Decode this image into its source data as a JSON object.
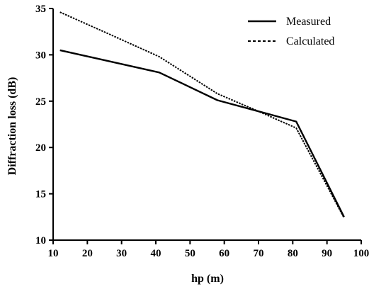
{
  "chart_data": {
    "type": "line",
    "title": "",
    "xlabel": "hp (m)",
    "ylabel": "Diffraction loss (dB)",
    "xlim": [
      10,
      100
    ],
    "ylim": [
      10,
      35
    ],
    "xticks": [
      10,
      20,
      30,
      40,
      50,
      60,
      70,
      80,
      90,
      100
    ],
    "yticks": [
      10,
      15,
      20,
      25,
      30,
      35
    ],
    "grid": false,
    "legend_position": "top-right",
    "series": [
      {
        "name": "Measured",
        "style": "solid",
        "color": "#000000",
        "points": [
          [
            12,
            30.5
          ],
          [
            41,
            28.1
          ],
          [
            58,
            25.1
          ],
          [
            70,
            23.9
          ],
          [
            81,
            22.8
          ],
          [
            95,
            12.5
          ]
        ]
      },
      {
        "name": "Calculated",
        "style": "dotted",
        "color": "#000000",
        "points": [
          [
            12,
            34.6
          ],
          [
            26,
            32.3
          ],
          [
            41,
            29.8
          ],
          [
            58,
            25.8
          ],
          [
            70,
            23.9
          ],
          [
            81,
            22.1
          ],
          [
            95,
            12.4
          ]
        ]
      }
    ]
  }
}
